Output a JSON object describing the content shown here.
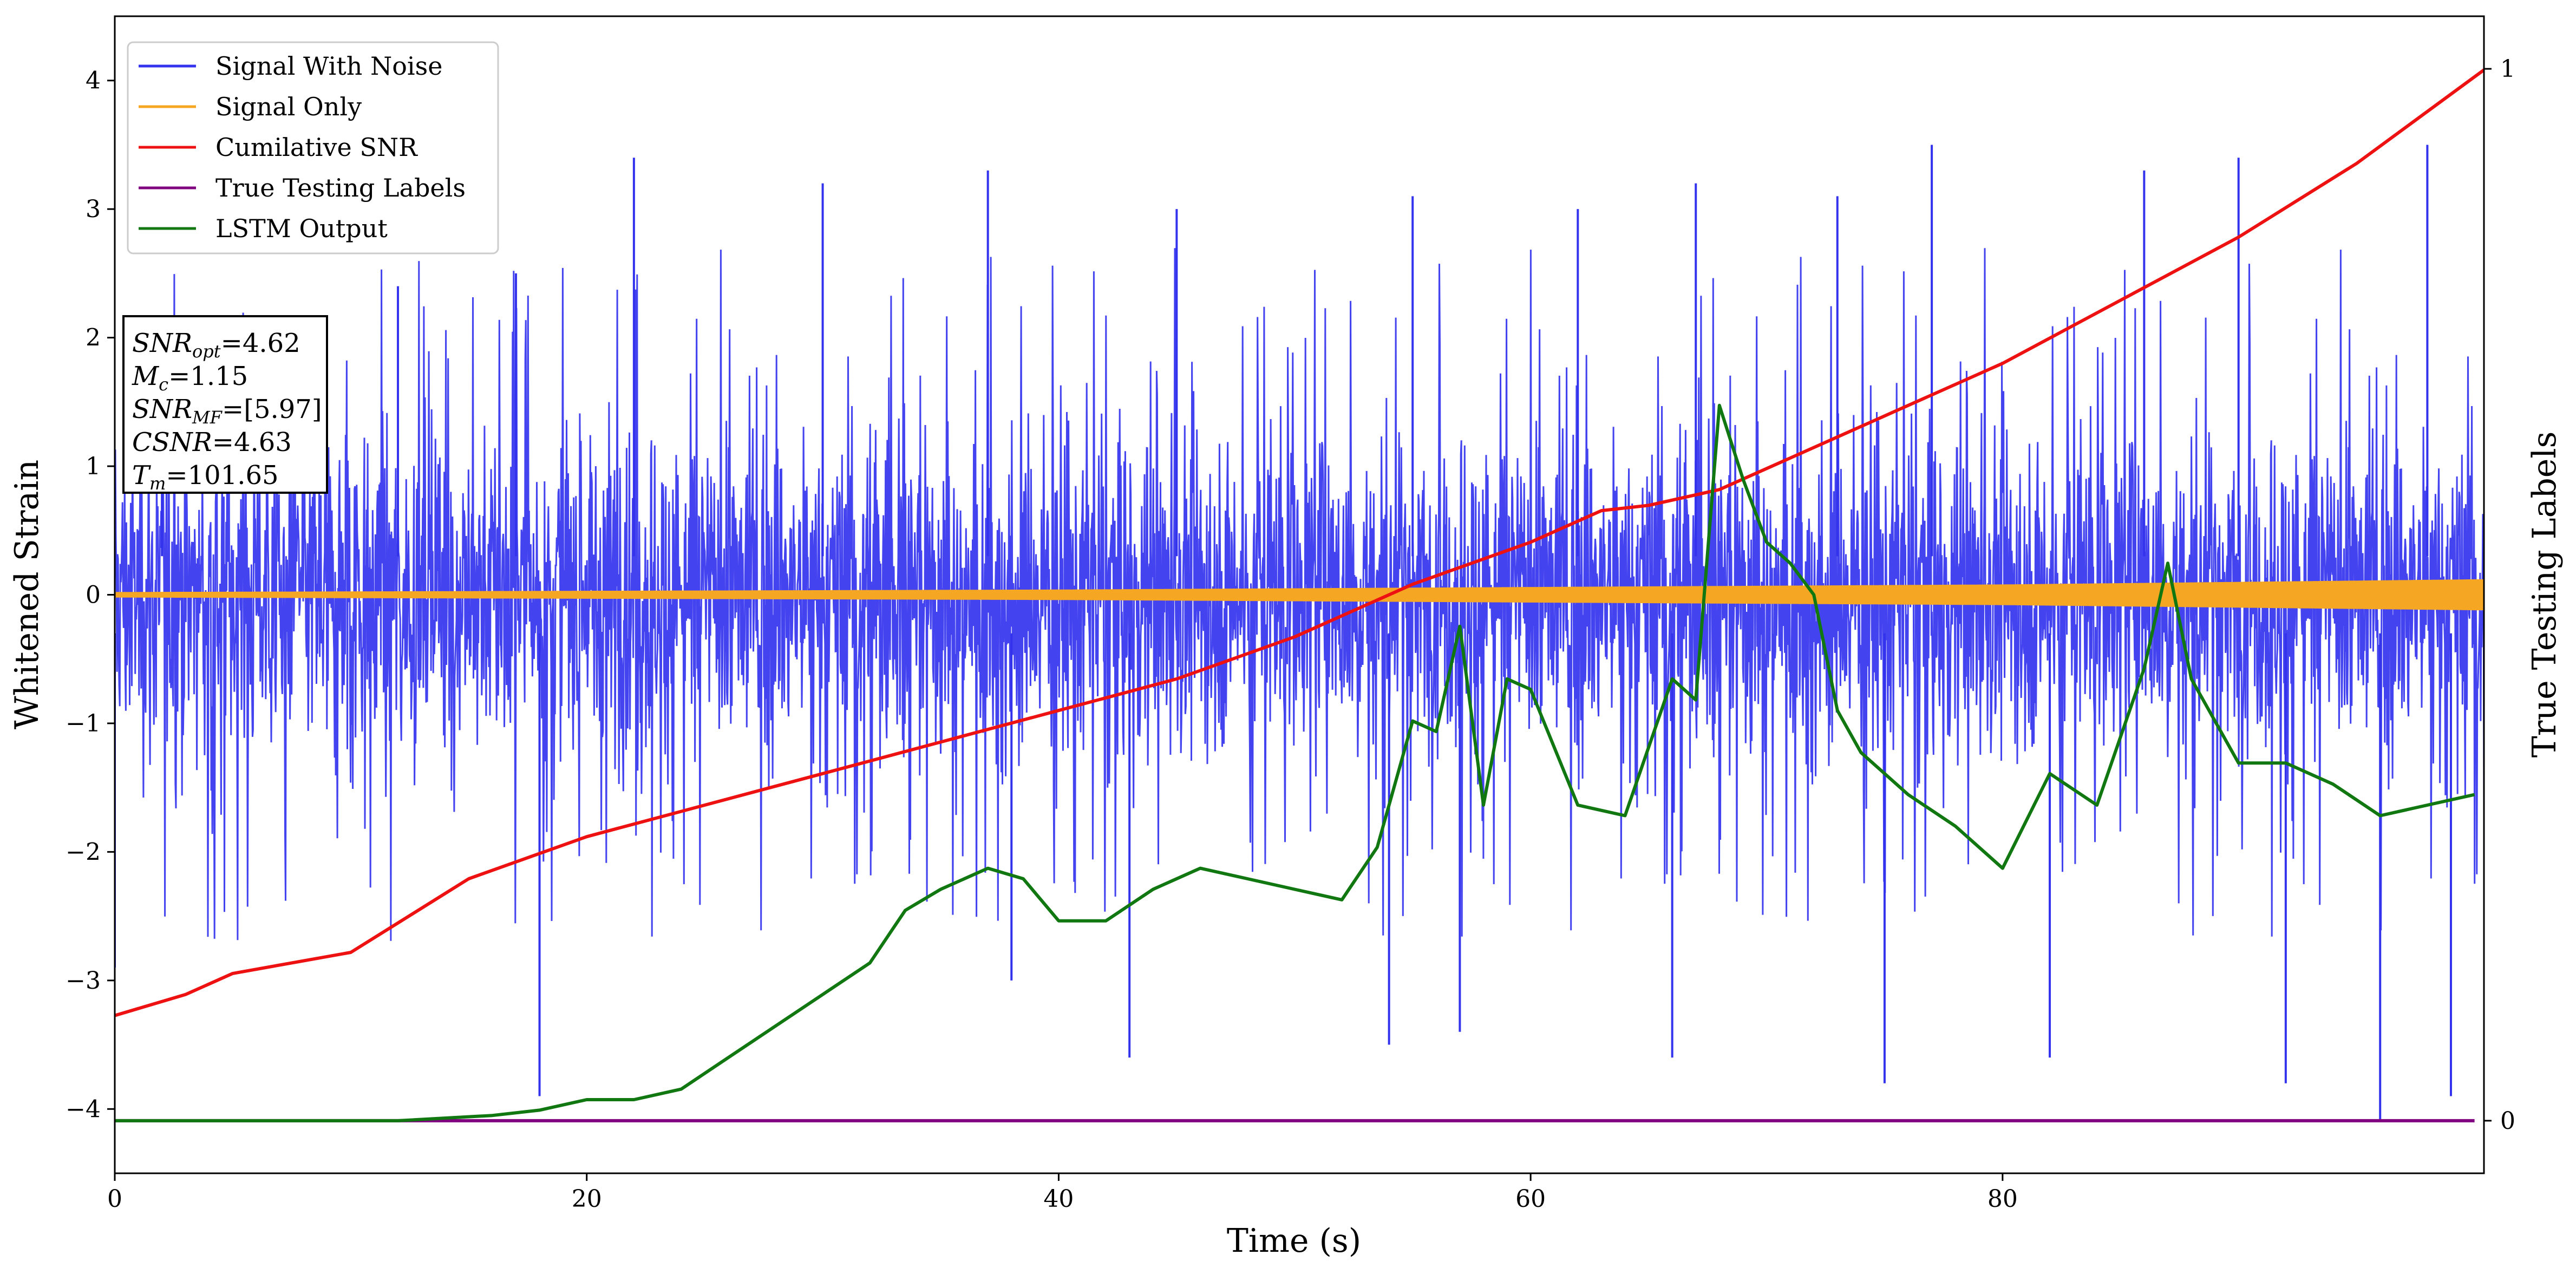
{
  "chart_data": {
    "type": "line",
    "xlabel": "Time (s)",
    "ylabel": "Whitened Strain",
    "y2label": "True Testing Labels",
    "xlim": [
      0,
      100.4
    ],
    "ylim": [
      -4.5,
      4.5
    ],
    "y2lim": [
      -0.05,
      1.05
    ],
    "x_ticks": [
      "0",
      "20",
      "40",
      "60",
      "80"
    ],
    "y_ticks": [
      "−4",
      "−3",
      "−2",
      "−1",
      "0",
      "1",
      "2",
      "3",
      "4"
    ],
    "y2_ticks": [
      "0",
      "1"
    ],
    "grid": false,
    "legend_position": "top-left",
    "annotation_lines": [
      {
        "main": "SNR",
        "sub": "opt",
        "rest": "=4.62"
      },
      {
        "main": "M",
        "sub": "c",
        "rest": "=1.15"
      },
      {
        "main": "SNR",
        "sub": "MF",
        "rest": "=[5.97]"
      },
      {
        "main": "CSNR",
        "sub": "",
        "rest": "=4.63"
      },
      {
        "main": "T",
        "sub": "m",
        "rest": "=101.65"
      }
    ],
    "series": [
      {
        "name": "Signal With Noise",
        "color": "#3333ee",
        "description_values": "dense noise, envelope approx ±2",
        "peaks_pos": [
          [
            2,
            2.0
          ],
          [
            12,
            2.4
          ],
          [
            17,
            2.5
          ],
          [
            22,
            3.4
          ],
          [
            30,
            3.2
          ],
          [
            37,
            3.3
          ],
          [
            45,
            3.0
          ],
          [
            55,
            3.1
          ],
          [
            62,
            3.0
          ],
          [
            67,
            3.2
          ],
          [
            73,
            3.1
          ],
          [
            77,
            3.5
          ],
          [
            86,
            3.3
          ],
          [
            90,
            3.4
          ],
          [
            98,
            3.5
          ]
        ],
        "peaks_neg": [
          [
            0,
            -2.9
          ],
          [
            18,
            -3.9
          ],
          [
            38,
            -3.0
          ],
          [
            43,
            -3.6
          ],
          [
            54,
            -3.5
          ],
          [
            57,
            -3.4
          ],
          [
            66,
            -3.6
          ],
          [
            75,
            -3.8
          ],
          [
            82,
            -3.6
          ],
          [
            92,
            -3.8
          ],
          [
            96,
            -4.1
          ],
          [
            99,
            -3.9
          ]
        ]
      },
      {
        "name": "Signal Only",
        "color": "#f5a623",
        "amplitude": [
          [
            0,
            0.02
          ],
          [
            40,
            0.04
          ],
          [
            60,
            0.06
          ],
          [
            80,
            0.08
          ],
          [
            100,
            0.12
          ]
        ]
      },
      {
        "name": "Cumilative SNR",
        "color": "#ee1111",
        "axis": "right",
        "x": [
          0,
          3,
          5,
          10,
          15,
          20,
          25,
          30,
          35,
          40,
          45,
          50,
          55,
          60,
          63,
          65,
          68,
          70,
          75,
          80,
          85,
          90,
          95,
          100.4
        ],
        "y": [
          0.1,
          0.12,
          0.14,
          0.16,
          0.23,
          0.27,
          0.3,
          0.33,
          0.36,
          0.39,
          0.42,
          0.46,
          0.51,
          0.55,
          0.58,
          0.585,
          0.6,
          0.62,
          0.67,
          0.72,
          0.78,
          0.84,
          0.91,
          0.999
        ]
      },
      {
        "name": "True Testing Labels",
        "color": "#800080",
        "axis": "right",
        "x": [
          0,
          100
        ],
        "y": [
          0,
          0
        ]
      },
      {
        "name": "LSTM Output",
        "color": "#117711",
        "axis": "right",
        "x": [
          0,
          12,
          16,
          18,
          20,
          22,
          24,
          26,
          28,
          30,
          32,
          33.5,
          35,
          37,
          38.5,
          40,
          42,
          44,
          46,
          48,
          50,
          52,
          53.5,
          55,
          56,
          57,
          58,
          59,
          60,
          62,
          64,
          66,
          67,
          68,
          69,
          70,
          71,
          72,
          73,
          74,
          75,
          76,
          78,
          80,
          82,
          84,
          86,
          87,
          88,
          90,
          92,
          94,
          96,
          98,
          100
        ],
        "y": [
          0,
          0,
          0.005,
          0.01,
          0.02,
          0.02,
          0.03,
          0.06,
          0.09,
          0.12,
          0.15,
          0.2,
          0.22,
          0.24,
          0.23,
          0.19,
          0.19,
          0.22,
          0.24,
          0.23,
          0.22,
          0.21,
          0.26,
          0.38,
          0.37,
          0.47,
          0.3,
          0.42,
          0.41,
          0.3,
          0.29,
          0.42,
          0.4,
          0.68,
          0.61,
          0.55,
          0.53,
          0.5,
          0.39,
          0.35,
          0.33,
          0.31,
          0.28,
          0.24,
          0.33,
          0.3,
          0.43,
          0.53,
          0.42,
          0.34,
          0.34,
          0.32,
          0.29,
          0.3,
          0.31
        ]
      }
    ]
  }
}
